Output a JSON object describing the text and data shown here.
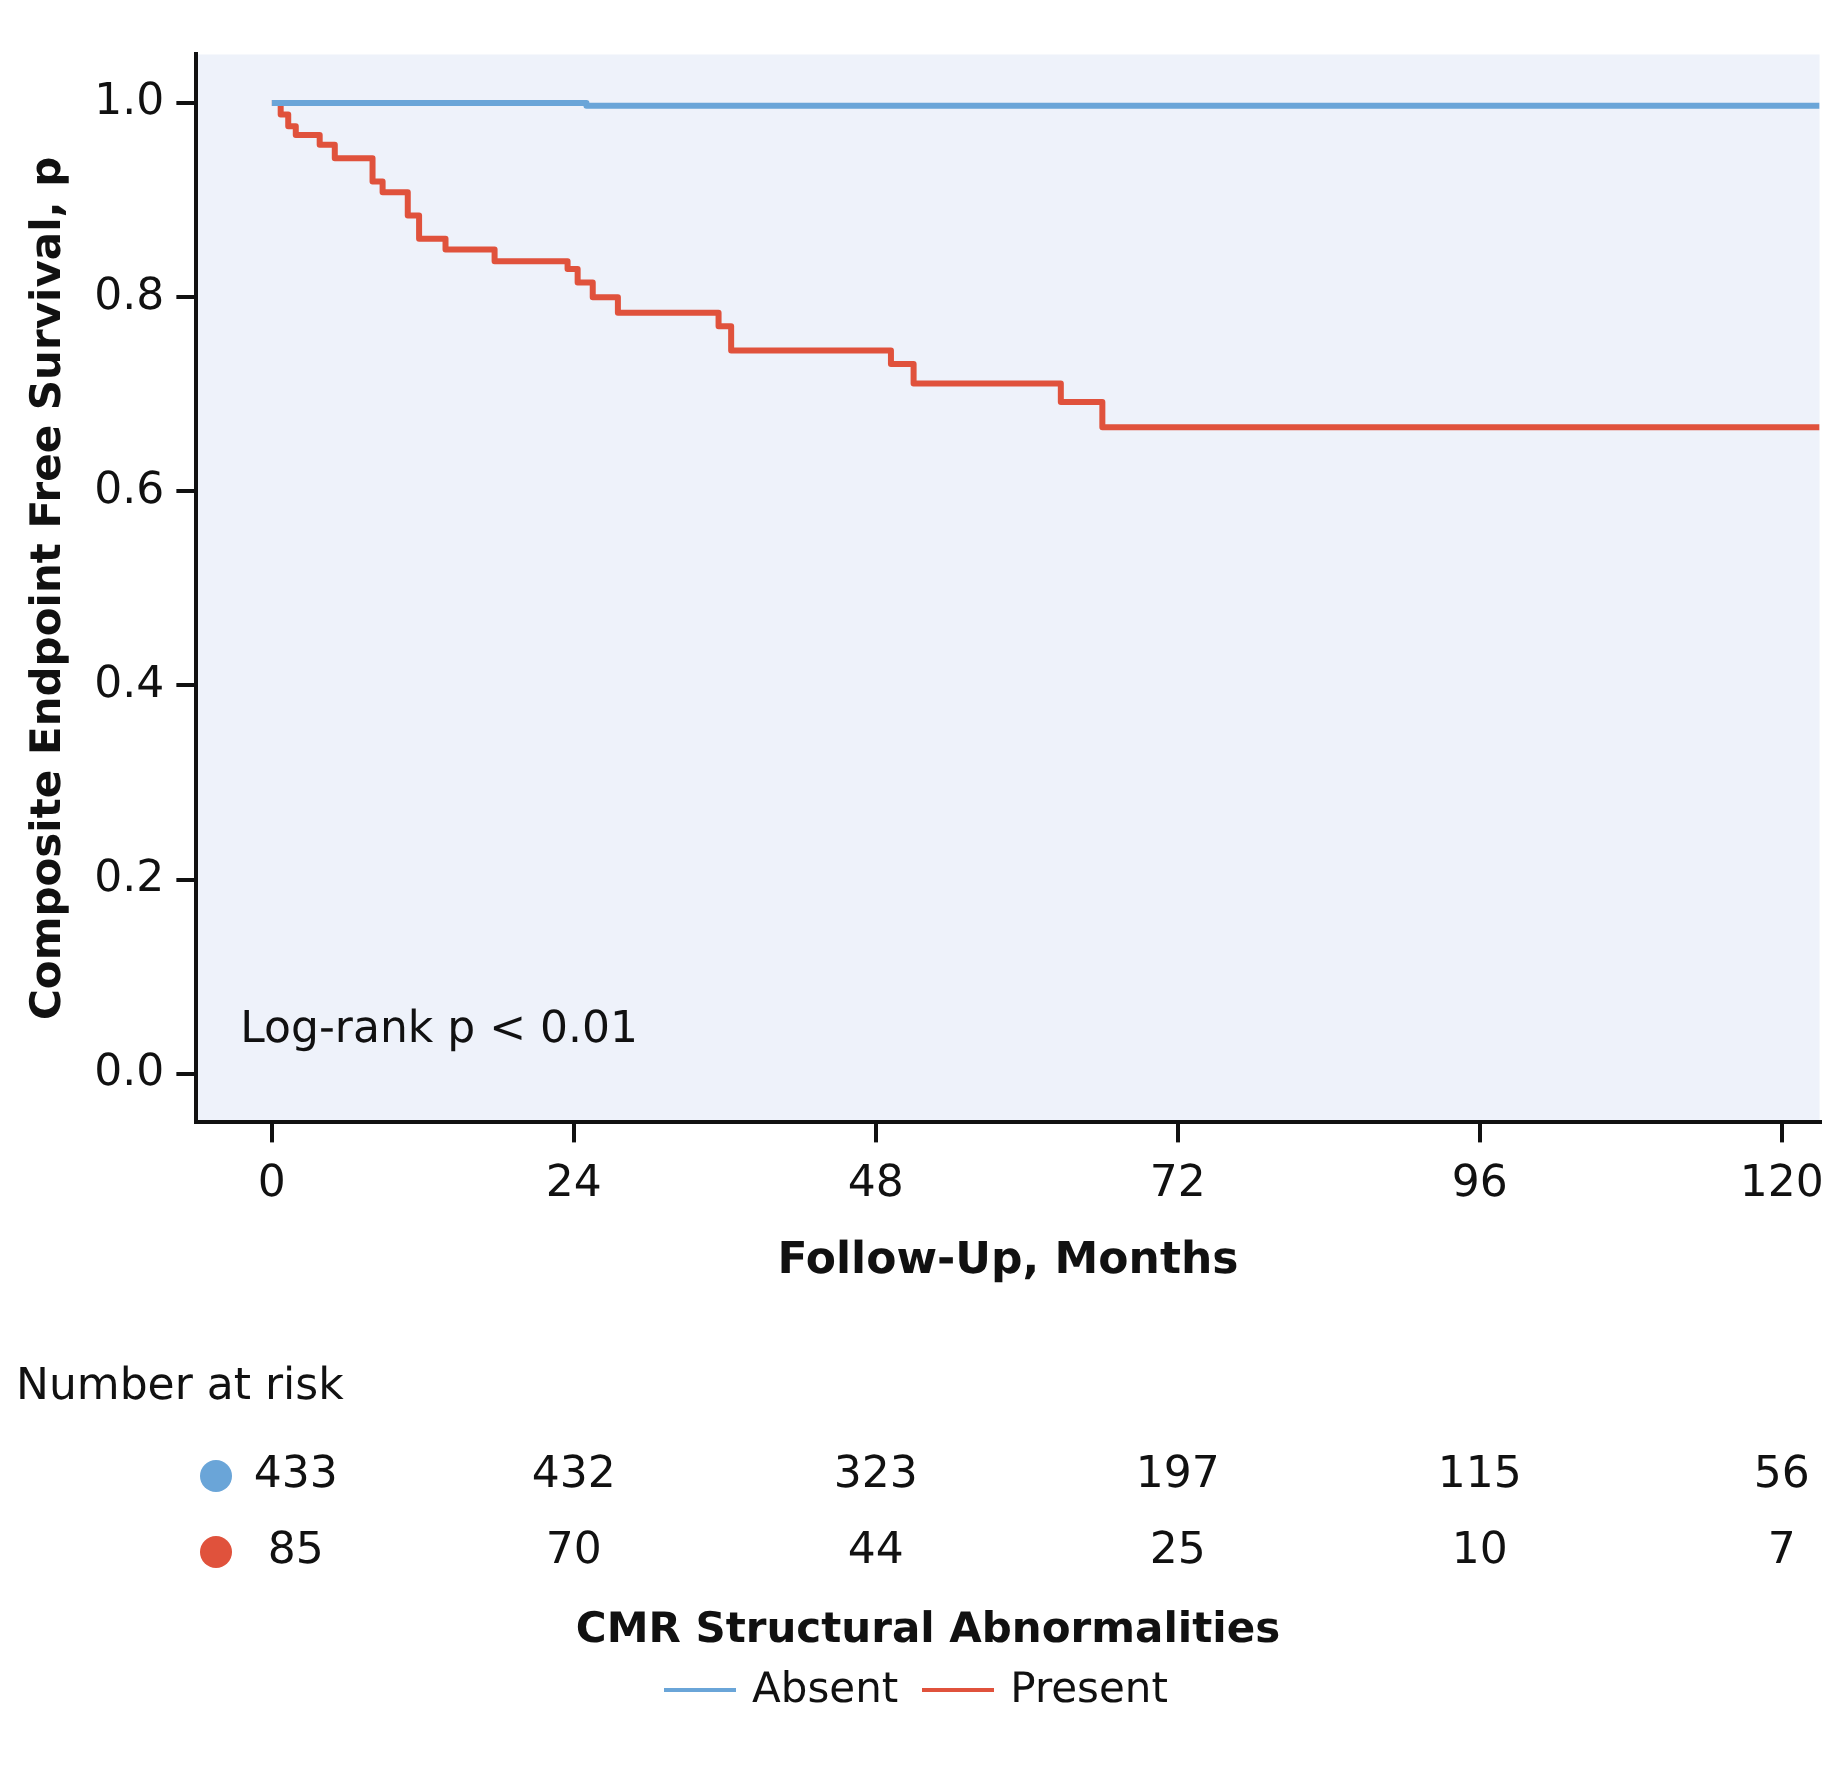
{
  "chart_data": {
    "type": "step",
    "xlabel": "Follow-Up, Months",
    "ylabel": "Composite Endpoint Free Survival, p",
    "legend_title": "CMR Structural Abnormalities",
    "legend": "bottom",
    "xlim": [
      -6,
      123
    ],
    "xticks": [
      0,
      24,
      48,
      72,
      96,
      120
    ],
    "ylim": [
      -0.05,
      1.05
    ],
    "yticks": [
      {
        "value": 0,
        "label": "0.0"
      },
      0.2,
      0.4,
      0.6,
      0.8,
      {
        "value": 1,
        "label": "1.0"
      }
    ],
    "series": [
      {
        "name": "Absent",
        "color": "#6aa5d8",
        "x": [
          0,
          25,
          123
        ],
        "values": [
          1,
          0.997,
          0.997
        ]
      },
      {
        "name": "Present",
        "color": "#e0523c",
        "x": [
          0,
          0.7,
          1.3,
          1.9,
          3.8,
          5,
          8,
          8.8,
          10.8,
          11.7,
          13.8,
          17.7,
          23.5,
          24.3,
          25.5,
          27.5,
          35.5,
          36.5,
          49.2,
          51,
          62.7,
          66,
          123
        ],
        "values": [
          1,
          0.988,
          0.976,
          0.967,
          0.957,
          0.943,
          0.919,
          0.908,
          0.884,
          0.86,
          0.849,
          0.837,
          0.829,
          0.815,
          0.8,
          0.784,
          0.77,
          0.745,
          0.731,
          0.711,
          0.692,
          0.666,
          0.666
        ]
      }
    ],
    "annotations": [
      "Log-rank p < 0.01",
      "Number at risk",
      "433",
      "432",
      "323",
      "197",
      "115",
      "56",
      "85",
      "70",
      "44",
      "25",
      "10",
      "7"
    ]
  }
}
